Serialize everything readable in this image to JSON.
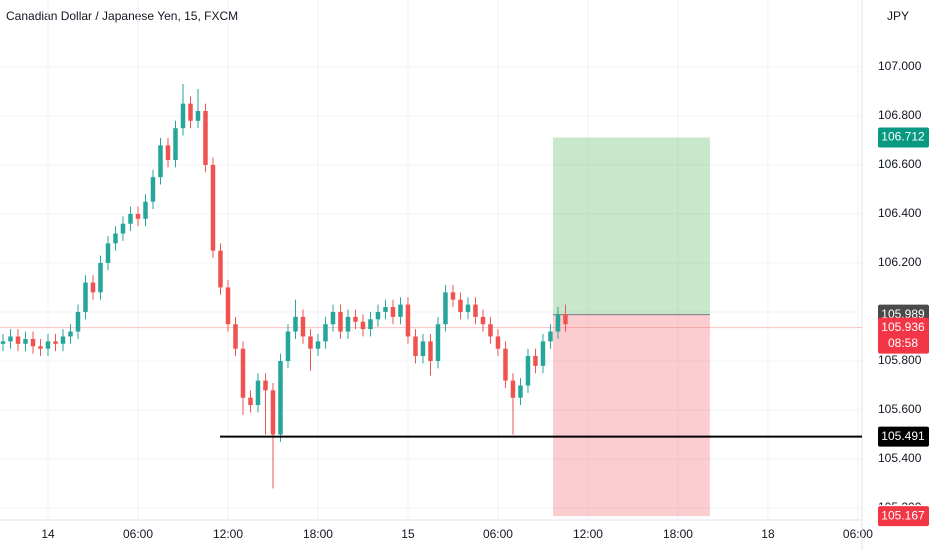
{
  "chart_data": {
    "type": "candlestick",
    "title": "Canadian Dollar / Japanese Yen, 15, FXCM",
    "currency": "JPY",
    "up_color": "#26a69a",
    "down_color": "#ef5350",
    "grid": true,
    "xlim": [
      -3.2,
      54.27
    ],
    "ylim": [
      105.151,
      107.273
    ],
    "xticks": [
      {
        "value": 0,
        "label": "14"
      },
      {
        "value": 6,
        "label": "06:00"
      },
      {
        "value": 12,
        "label": "12:00"
      },
      {
        "value": 18,
        "label": "18:00"
      },
      {
        "value": 24,
        "label": "15"
      },
      {
        "value": 30,
        "label": "06:00"
      },
      {
        "value": 36,
        "label": "12:00"
      },
      {
        "value": 42,
        "label": "18:00"
      },
      {
        "value": 48,
        "label": "18"
      },
      {
        "value": 54,
        "label": "06:00"
      }
    ],
    "yticks": [
      {
        "value": 105.2,
        "label": "105.200"
      },
      {
        "value": 105.4,
        "label": "105.400"
      },
      {
        "value": 105.6,
        "label": "105.600"
      },
      {
        "value": 105.8,
        "label": "105.800"
      },
      {
        "value": 106.0,
        "label": "106.000"
      },
      {
        "value": 106.2,
        "label": "106.200"
      },
      {
        "value": 106.4,
        "label": "106.400"
      },
      {
        "value": 106.6,
        "label": "106.600"
      },
      {
        "value": 106.8,
        "label": "106.800"
      },
      {
        "value": 107.0,
        "label": "107.000"
      }
    ],
    "x": [
      -3,
      -2.5,
      -2,
      -1.5,
      -1,
      -0.5,
      0,
      0.5,
      1,
      1.5,
      2,
      2.5,
      3,
      3.5,
      4,
      4.5,
      5,
      5.5,
      6,
      6.5,
      7,
      7.5,
      8,
      8.5,
      9,
      9.5,
      10,
      10.5,
      11,
      11.5,
      12,
      12.5,
      13,
      13.5,
      14,
      14.5,
      15,
      15.5,
      16,
      16.5,
      17,
      17.5,
      18,
      18.5,
      19,
      19.5,
      20,
      20.5,
      21,
      21.5,
      22,
      22.5,
      23,
      23.5,
      24,
      24.5,
      25,
      25.5,
      26,
      26.5,
      27,
      27.5,
      28,
      28.5,
      29,
      29.5,
      30,
      30.5,
      31,
      31.5,
      32,
      32.5,
      33,
      33.5,
      34,
      34.5
    ],
    "open": [
      105.87,
      105.88,
      105.9,
      105.87,
      105.89,
      105.86,
      105.85,
      105.88,
      105.87,
      105.9,
      105.92,
      106.0,
      106.12,
      106.08,
      106.2,
      106.28,
      106.32,
      106.36,
      106.4,
      106.38,
      106.45,
      106.55,
      106.68,
      106.62,
      106.75,
      106.85,
      106.78,
      106.82,
      106.6,
      106.25,
      106.1,
      105.95,
      105.85,
      105.65,
      105.62,
      105.72,
      105.68,
      105.5,
      105.8,
      105.92,
      105.98,
      105.9,
      105.85,
      105.88,
      105.95,
      106.0,
      105.92,
      105.98,
      105.96,
      105.93,
      105.97,
      106.0,
      106.02,
      105.98,
      106.03,
      105.9,
      105.82,
      105.88,
      105.8,
      105.95,
      106.08,
      106.05,
      106.0,
      106.03,
      105.98,
      105.95,
      105.9,
      105.85,
      105.72,
      105.65,
      105.7,
      105.82,
      105.78,
      105.88,
      105.92,
      105.99
    ],
    "high": [
      105.91,
      105.93,
      105.93,
      105.92,
      105.92,
      105.89,
      105.91,
      105.91,
      105.93,
      105.95,
      106.03,
      106.15,
      106.15,
      106.23,
      106.31,
      106.35,
      106.39,
      106.43,
      106.43,
      106.48,
      106.58,
      106.71,
      106.71,
      106.78,
      106.93,
      106.88,
      106.91,
      106.85,
      106.63,
      106.28,
      106.13,
      105.98,
      105.88,
      105.68,
      105.75,
      105.75,
      105.71,
      105.83,
      105.95,
      106.05,
      106.01,
      105.93,
      105.91,
      105.98,
      106.03,
      106.03,
      106.01,
      106.01,
      105.99,
      106.0,
      106.03,
      106.05,
      106.05,
      106.06,
      106.06,
      105.93,
      105.91,
      105.91,
      105.98,
      106.11,
      106.11,
      106.08,
      106.06,
      106.06,
      106.01,
      105.98,
      105.93,
      105.88,
      105.75,
      105.73,
      105.85,
      105.85,
      105.91,
      105.95,
      106.02,
      106.03
    ],
    "low": [
      105.84,
      105.85,
      105.84,
      105.84,
      105.83,
      105.82,
      105.82,
      105.84,
      105.84,
      105.87,
      105.89,
      105.97,
      106.05,
      106.05,
      106.17,
      106.25,
      106.29,
      106.33,
      106.35,
      106.35,
      106.42,
      106.52,
      106.59,
      106.59,
      106.72,
      106.75,
      106.75,
      106.57,
      106.22,
      106.07,
      105.92,
      105.82,
      105.58,
      105.59,
      105.59,
      105.5,
      105.28,
      105.47,
      105.77,
      105.89,
      105.87,
      105.76,
      105.82,
      105.85,
      105.92,
      105.89,
      105.89,
      105.93,
      105.9,
      105.9,
      105.94,
      105.97,
      105.95,
      105.95,
      105.87,
      105.79,
      105.79,
      105.74,
      105.77,
      105.92,
      106.02,
      105.97,
      105.97,
      105.95,
      105.92,
      105.87,
      105.82,
      105.69,
      105.5,
      105.62,
      105.67,
      105.75,
      105.75,
      105.85,
      105.89,
      105.92
    ],
    "close": [
      105.88,
      105.9,
      105.87,
      105.89,
      105.86,
      105.85,
      105.88,
      105.87,
      105.9,
      105.92,
      106.0,
      106.12,
      106.08,
      106.2,
      106.28,
      106.32,
      106.36,
      106.4,
      106.38,
      106.45,
      106.55,
      106.68,
      106.62,
      106.75,
      106.85,
      106.78,
      106.82,
      106.6,
      106.25,
      106.1,
      105.95,
      105.85,
      105.65,
      105.62,
      105.72,
      105.68,
      105.5,
      105.8,
      105.92,
      105.98,
      105.9,
      105.85,
      105.88,
      105.95,
      106.0,
      105.92,
      105.98,
      105.96,
      105.93,
      105.97,
      106.0,
      106.02,
      105.98,
      106.03,
      105.9,
      105.82,
      105.88,
      105.8,
      105.95,
      106.08,
      106.05,
      106.0,
      106.03,
      105.98,
      105.95,
      105.9,
      105.85,
      105.72,
      105.65,
      105.7,
      105.82,
      105.78,
      105.88,
      105.92,
      105.99,
      105.95
    ],
    "last_price": 105.936,
    "countdown": "08:58",
    "horizontal_line": {
      "value": 105.491,
      "start_x": 11.47,
      "color": "#000000"
    },
    "position": {
      "entry": 105.989,
      "target": 106.712,
      "stop": 105.167,
      "start_x": 33.67,
      "end_x": 44.13
    }
  }
}
